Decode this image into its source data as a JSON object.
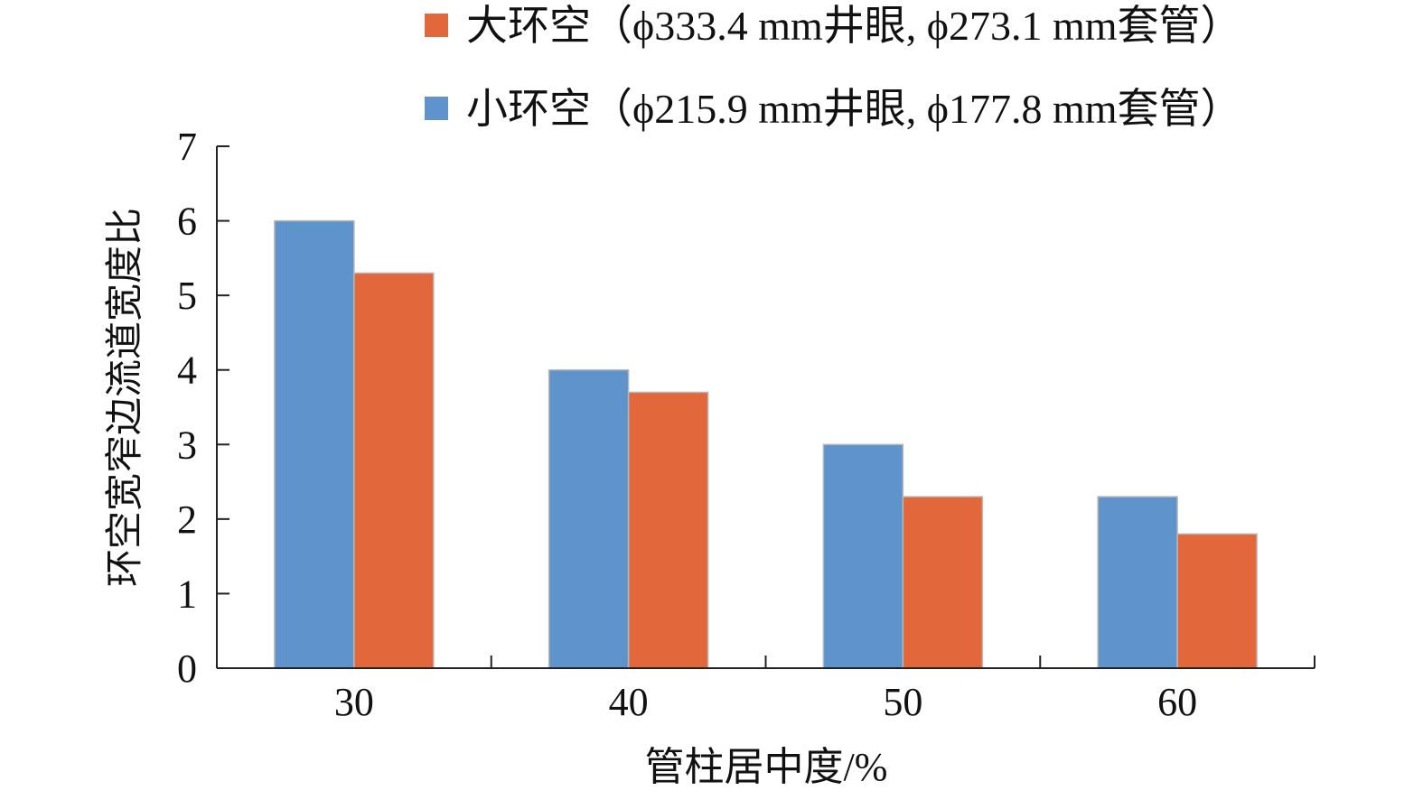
{
  "chart_data": {
    "type": "bar",
    "title": "",
    "xlabel": "管柱居中度/%",
    "ylabel": "环空宽窄边流道宽度比",
    "categories": [
      "30",
      "40",
      "50",
      "60"
    ],
    "ylim": [
      0,
      7
    ],
    "yticks": [
      "0",
      "1",
      "2",
      "3",
      "4",
      "5",
      "6",
      "7"
    ],
    "grid": false,
    "legend_position": "top-right",
    "series": [
      {
        "name": "小环空（ϕ215.9 mm井眼, ϕ177.8 mm套管）",
        "color": "#5f93cc",
        "values": [
          6.0,
          4.0,
          3.0,
          2.3
        ]
      },
      {
        "name": "大环空（ϕ333.4 mm井眼, ϕ273.1 mm套管）",
        "color": "#e2673a",
        "values": [
          5.3,
          3.7,
          2.3,
          1.8
        ]
      }
    ],
    "legend_order": [
      1,
      0
    ]
  }
}
